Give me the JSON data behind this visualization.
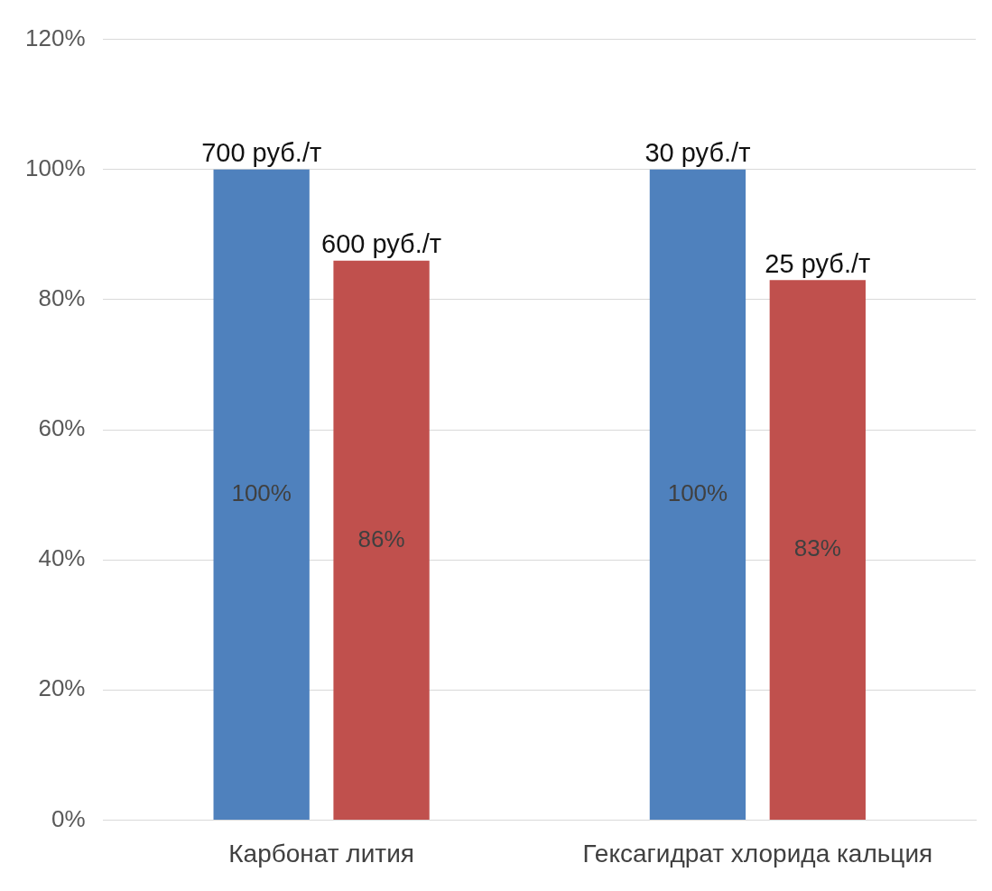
{
  "chart_data": {
    "type": "bar",
    "categories": [
      "Карбонат лития",
      "Гексагидрат хлорида кальция"
    ],
    "series": [
      {
        "color": "#4f81bd",
        "values": [
          100,
          100
        ],
        "value_labels": [
          "100%",
          "100%"
        ]
      },
      {
        "color": "#c0504d",
        "values": [
          86,
          83
        ],
        "value_labels": [
          "86%",
          "83%"
        ]
      }
    ],
    "annotations": [
      "700 руб./т",
      "600 руб./т",
      "30 руб./т",
      "25 руб./т"
    ],
    "ylim": [
      0,
      120
    ],
    "yticks": [
      {
        "value": 0,
        "label": "0%"
      },
      {
        "value": 20,
        "label": "20%"
      },
      {
        "value": 40,
        "label": "40%"
      },
      {
        "value": 60,
        "label": "60%"
      },
      {
        "value": 80,
        "label": "80%"
      },
      {
        "value": 100,
        "label": "100%"
      },
      {
        "value": 120,
        "label": "120%"
      }
    ],
    "grid": "y",
    "legend": false
  }
}
